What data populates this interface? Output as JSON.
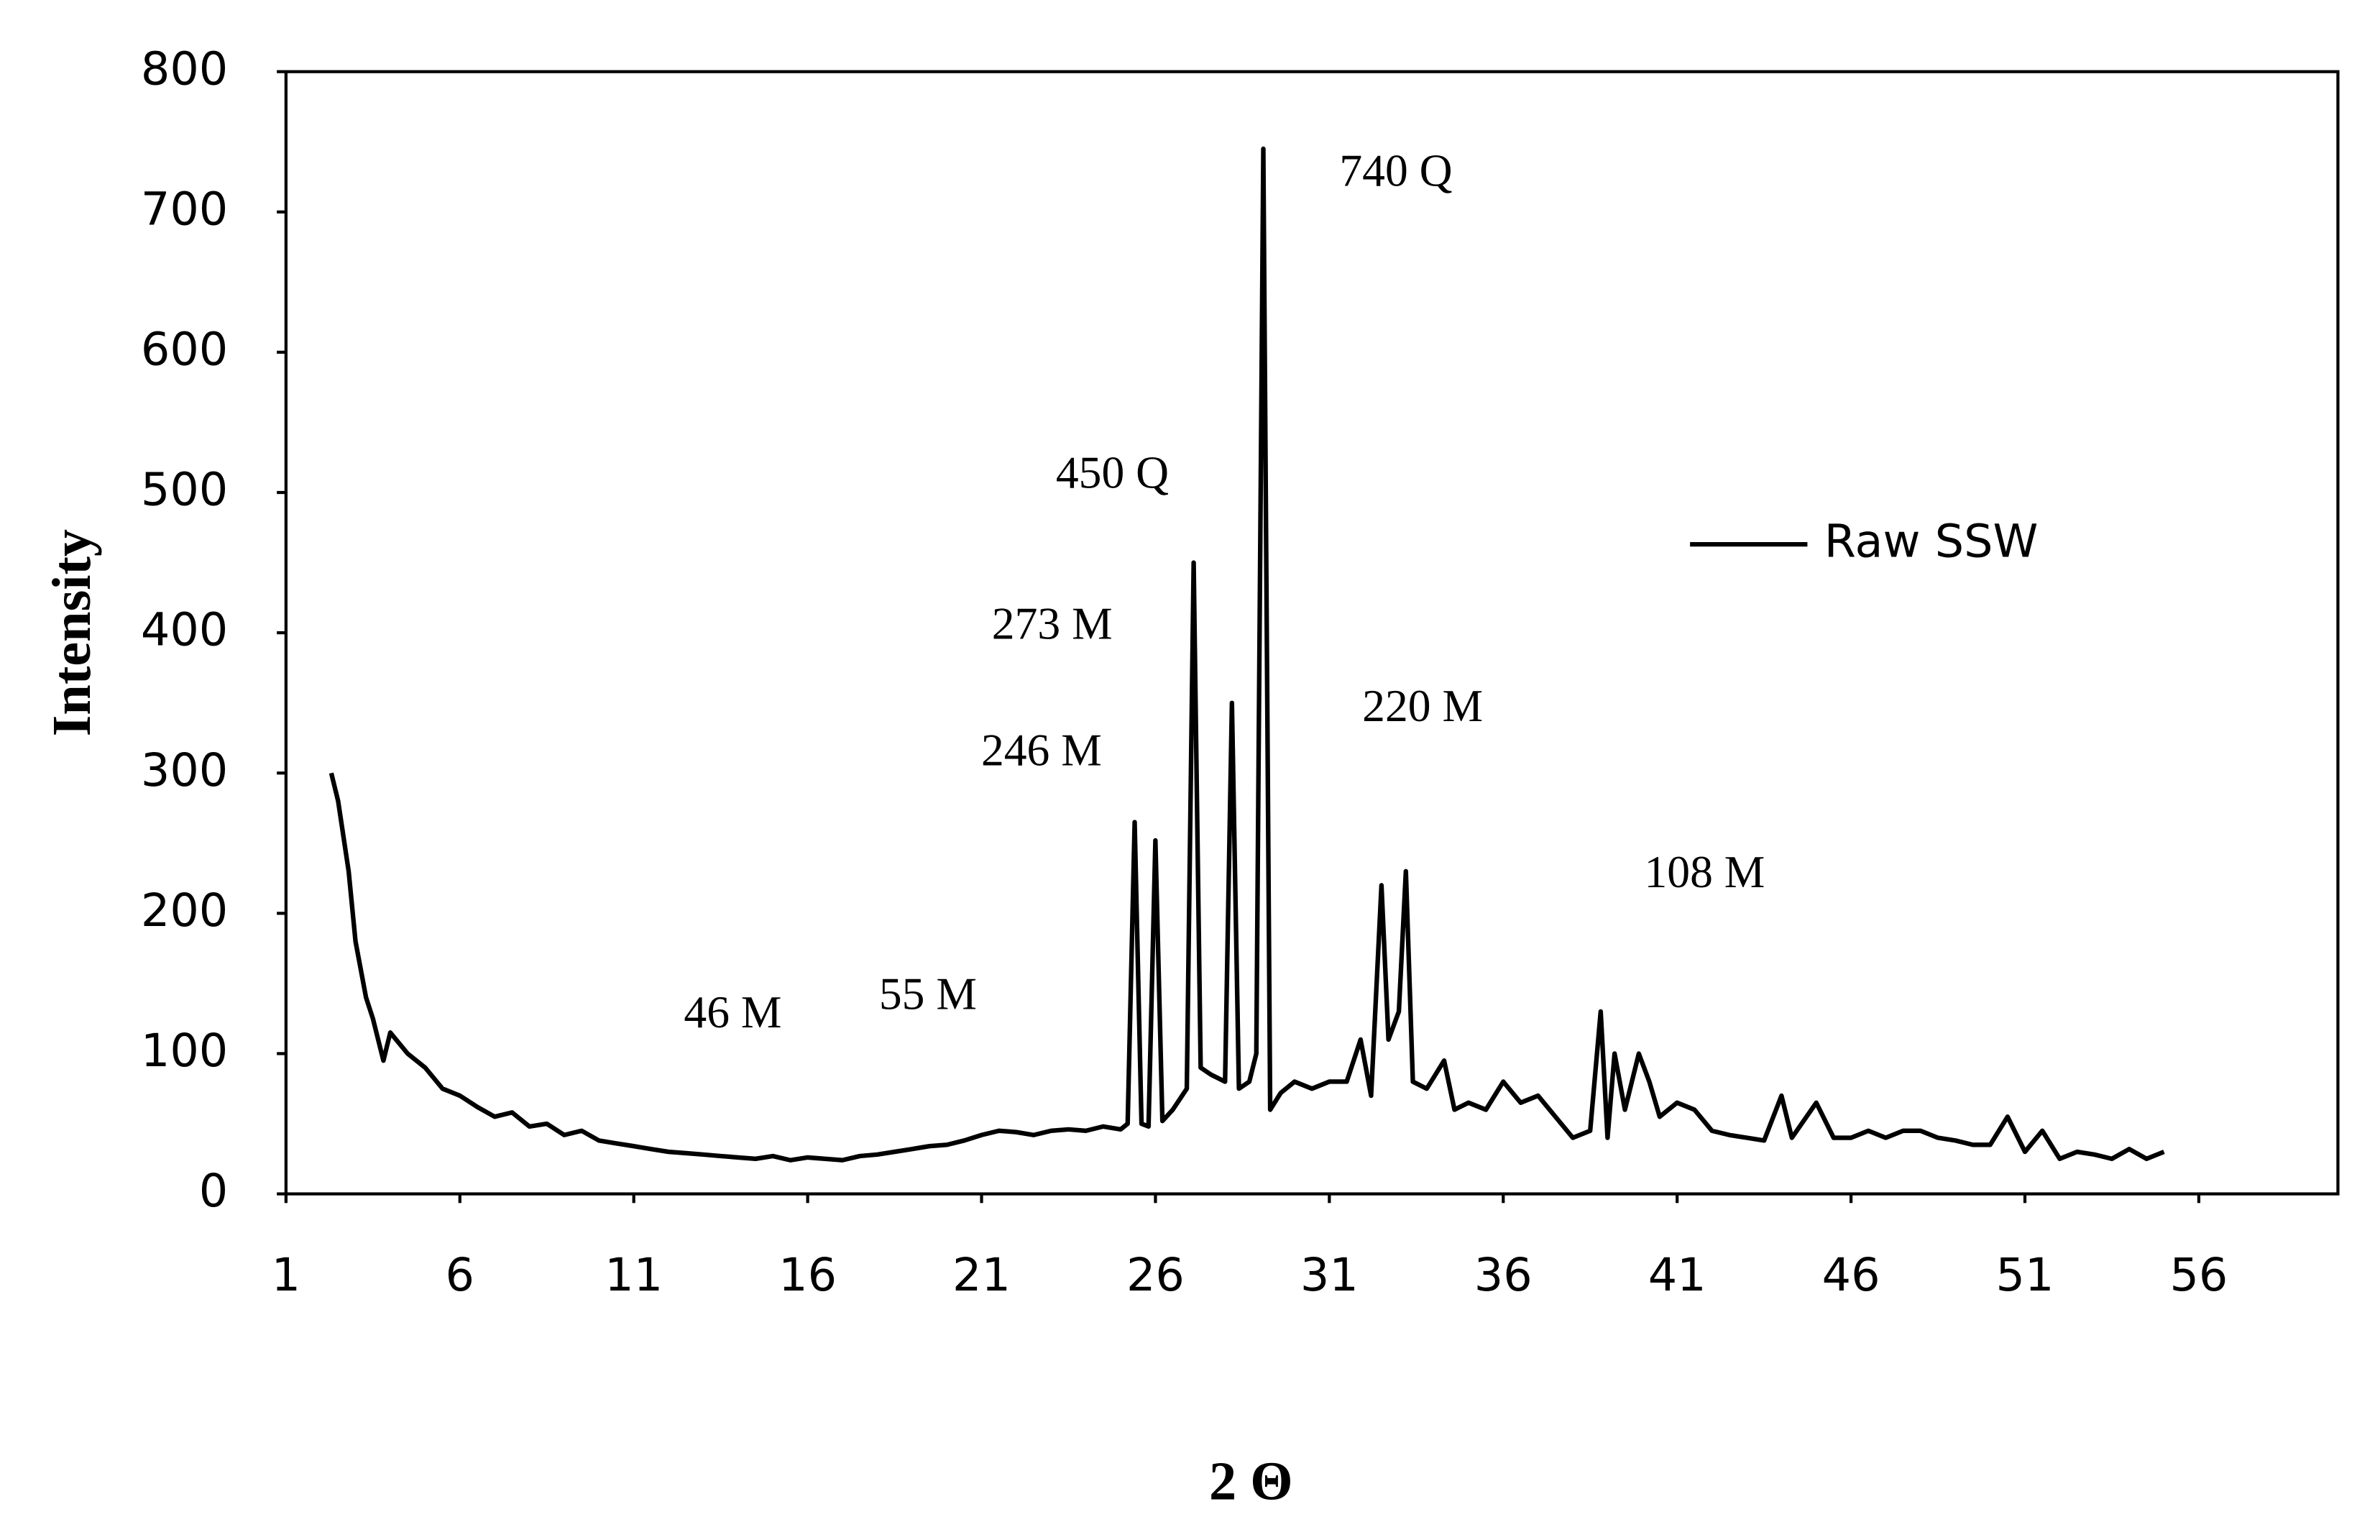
{
  "chart_data": {
    "type": "line",
    "x_label": "2 Θ",
    "y_label": "Intensity",
    "xlim": [
      1,
      60
    ],
    "xticks": [
      1,
      6,
      11,
      16,
      21,
      26,
      31,
      36,
      41,
      46,
      51,
      56
    ],
    "ylim": [
      0,
      800
    ],
    "yticks": [
      0,
      100,
      200,
      300,
      400,
      500,
      600,
      700,
      800
    ],
    "legend": "right",
    "annotations": [
      "740 Q",
      "450 Q",
      "273 M",
      "246 M",
      "220 M",
      "108 M",
      "46 M",
      "55 M"
    ],
    "x": [
      2.3,
      2.5,
      2.8,
      3,
      3.3,
      3.5,
      3.8,
      4,
      4.5,
      5,
      5.5,
      6,
      6.5,
      7,
      7.5,
      8,
      8.5,
      9,
      9.5,
      10,
      10.5,
      11,
      11.5,
      12,
      12.5,
      13,
      13.5,
      14,
      14.5,
      15,
      15.5,
      16,
      16.5,
      17,
      17.5,
      18,
      18.5,
      19,
      19.5,
      20,
      20.5,
      21,
      21.5,
      22,
      22.5,
      23,
      23.5,
      24,
      24.5,
      25,
      25.2,
      25.4,
      25.6,
      25.8,
      26,
      26.2,
      26.5,
      26.9,
      27.1,
      27.3,
      27.6,
      28,
      28.2,
      28.4,
      28.7,
      28.9,
      29.1,
      29.3,
      29.6,
      30,
      30.5,
      31,
      31.5,
      31.9,
      32.2,
      32.5,
      32.7,
      33,
      33.2,
      33.4,
      33.8,
      34.3,
      34.6,
      35,
      35.5,
      36,
      36.5,
      37,
      37.5,
      38,
      38.5,
      38.8,
      39,
      39.2,
      39.5,
      39.9,
      40.2,
      40.5,
      41,
      41.5,
      42,
      42.5,
      43,
      43.5,
      44,
      44.3,
      45,
      45.5,
      46,
      46.5,
      47,
      47.5,
      48,
      48.5,
      49,
      49.5,
      50,
      50.5,
      51,
      51.5,
      52,
      52.5,
      53,
      53.5,
      54,
      54.5,
      55
    ],
    "series": [
      {
        "name": "Raw SSW",
        "color": "#000000",
        "values": [
          300,
          280,
          230,
          180,
          140,
          125,
          95,
          115,
          100,
          90,
          75,
          70,
          62,
          55,
          58,
          48,
          50,
          42,
          45,
          38,
          36,
          34,
          32,
          30,
          29,
          28,
          27,
          26,
          25,
          27,
          24,
          26,
          25,
          24,
          27,
          28,
          30,
          32,
          34,
          35,
          38,
          42,
          45,
          44,
          42,
          45,
          46,
          45,
          48,
          46,
          50,
          265,
          50,
          48,
          252,
          52,
          60,
          75,
          450,
          90,
          85,
          80,
          350,
          75,
          80,
          100,
          745,
          60,
          72,
          80,
          75,
          80,
          80,
          110,
          70,
          220,
          110,
          130,
          230,
          80,
          75,
          95,
          60,
          65,
          60,
          80,
          65,
          70,
          55,
          40,
          45,
          130,
          40,
          100,
          60,
          100,
          80,
          55,
          65,
          60,
          45,
          42,
          40,
          38,
          70,
          40,
          65,
          40,
          40,
          45,
          40,
          45,
          45,
          40,
          38,
          35,
          35,
          55,
          30,
          45,
          25,
          30,
          28,
          25,
          32,
          25,
          30
        ]
      }
    ]
  }
}
